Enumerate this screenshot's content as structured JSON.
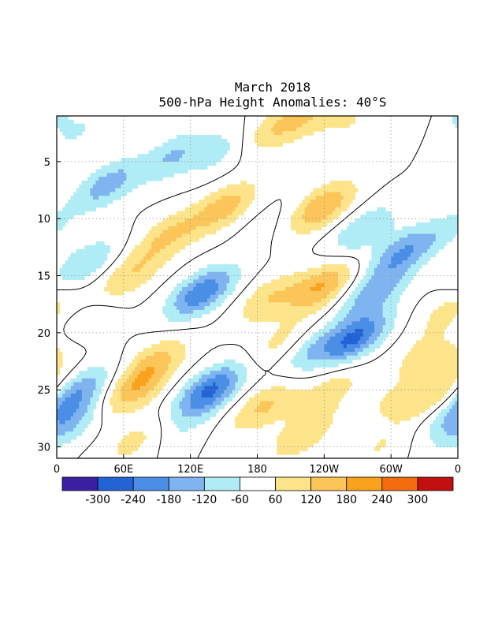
{
  "chart_data": {
    "type": "heatmap",
    "title": "March 2018",
    "subtitle": "500-hPa Height Anomalies: 40°S",
    "xlabel": "",
    "ylabel": "",
    "x_ticks": [
      "0",
      "60E",
      "120E",
      "180",
      "120W",
      "60W",
      "0"
    ],
    "x_tick_values": [
      0,
      60,
      120,
      180,
      240,
      300,
      360
    ],
    "xlim": [
      0,
      360
    ],
    "y_ticks": [
      "5",
      "10",
      "15",
      "20",
      "25",
      "30"
    ],
    "y_tick_values": [
      5,
      10,
      15,
      20,
      25,
      30
    ],
    "ylim": [
      1,
      31
    ],
    "y_inverted": true,
    "grid": true,
    "contour_value_label": "0",
    "colorbar": {
      "labels": [
        "-300",
        "-240",
        "-180",
        "-120",
        "-60",
        "60",
        "120",
        "180",
        "240",
        "300"
      ],
      "levels": [
        -300,
        -240,
        -180,
        -120,
        -60,
        60,
        120,
        180,
        240,
        300
      ],
      "colors": [
        "#3a1fa3",
        "#2363d6",
        "#4a8ee6",
        "#7fb4f0",
        "#b0ecf5",
        "#ffffff",
        "#fde48a",
        "#fcc55a",
        "#f9a21e",
        "#f36d10",
        "#c20f0f"
      ]
    },
    "anomalies": [
      {
        "lon": 150,
        "day": 4,
        "value": -90
      },
      {
        "lon": 185,
        "day": 2.5,
        "value": 90
      },
      {
        "lon": 222,
        "day": 1,
        "value": 120
      },
      {
        "lon": 262,
        "day": 1.5,
        "value": 60
      },
      {
        "lon": 320,
        "day": 2,
        "value": 60
      },
      {
        "lon": 353,
        "day": 1,
        "value": -70
      },
      {
        "lon": 18,
        "day": 2.5,
        "value": -60
      },
      {
        "lon": 45,
        "day": 7,
        "value": -150
      },
      {
        "lon": 105,
        "day": 4.5,
        "value": -120
      },
      {
        "lon": 150,
        "day": 9,
        "value": 150
      },
      {
        "lon": 100,
        "day": 11.5,
        "value": 120
      },
      {
        "lon": 190,
        "day": 10.5,
        "value": -30
      },
      {
        "lon": 238,
        "day": 9,
        "value": 180
      },
      {
        "lon": 275,
        "day": 11,
        "value": -120
      },
      {
        "lon": 310,
        "day": 13,
        "value": -170
      },
      {
        "lon": 350,
        "day": 11,
        "value": -60
      },
      {
        "lon": 25,
        "day": 14,
        "value": -120
      },
      {
        "lon": 65,
        "day": 15,
        "value": 110
      },
      {
        "lon": 130,
        "day": 16.5,
        "value": -230
      },
      {
        "lon": 190,
        "day": 17,
        "value": 110
      },
      {
        "lon": 237,
        "day": 16,
        "value": 180
      },
      {
        "lon": 285,
        "day": 16.5,
        "value": -150
      },
      {
        "lon": 352,
        "day": 18,
        "value": 80
      },
      {
        "lon": 18,
        "day": 20,
        "value": -110
      },
      {
        "lon": 88,
        "day": 22.5,
        "value": 120
      },
      {
        "lon": 200,
        "day": 21,
        "value": 80
      },
      {
        "lon": 228,
        "day": 21.5,
        "value": -110
      },
      {
        "lon": 268,
        "day": 20.5,
        "value": -240
      },
      {
        "lon": 322,
        "day": 22,
        "value": 60
      },
      {
        "lon": 0,
        "day": 21.5,
        "value": 120
      },
      {
        "lon": 20,
        "day": 25,
        "value": -150
      },
      {
        "lon": 70,
        "day": 25,
        "value": 150
      },
      {
        "lon": 138,
        "day": 25,
        "value": -250
      },
      {
        "lon": 185,
        "day": 26.5,
        "value": 130
      },
      {
        "lon": 245,
        "day": 25,
        "value": 90
      },
      {
        "lon": 300,
        "day": 26,
        "value": 60
      },
      {
        "lon": 342,
        "day": 25.5,
        "value": 130
      },
      {
        "lon": 352,
        "day": 27,
        "value": -80
      },
      {
        "lon": 10,
        "day": 28,
        "value": -130
      },
      {
        "lon": 70,
        "day": 29.5,
        "value": 80
      },
      {
        "lon": 115,
        "day": 28,
        "value": -50
      },
      {
        "lon": 220,
        "day": 29,
        "value": 110
      },
      {
        "lon": 290,
        "day": 30,
        "value": 60
      }
    ]
  }
}
